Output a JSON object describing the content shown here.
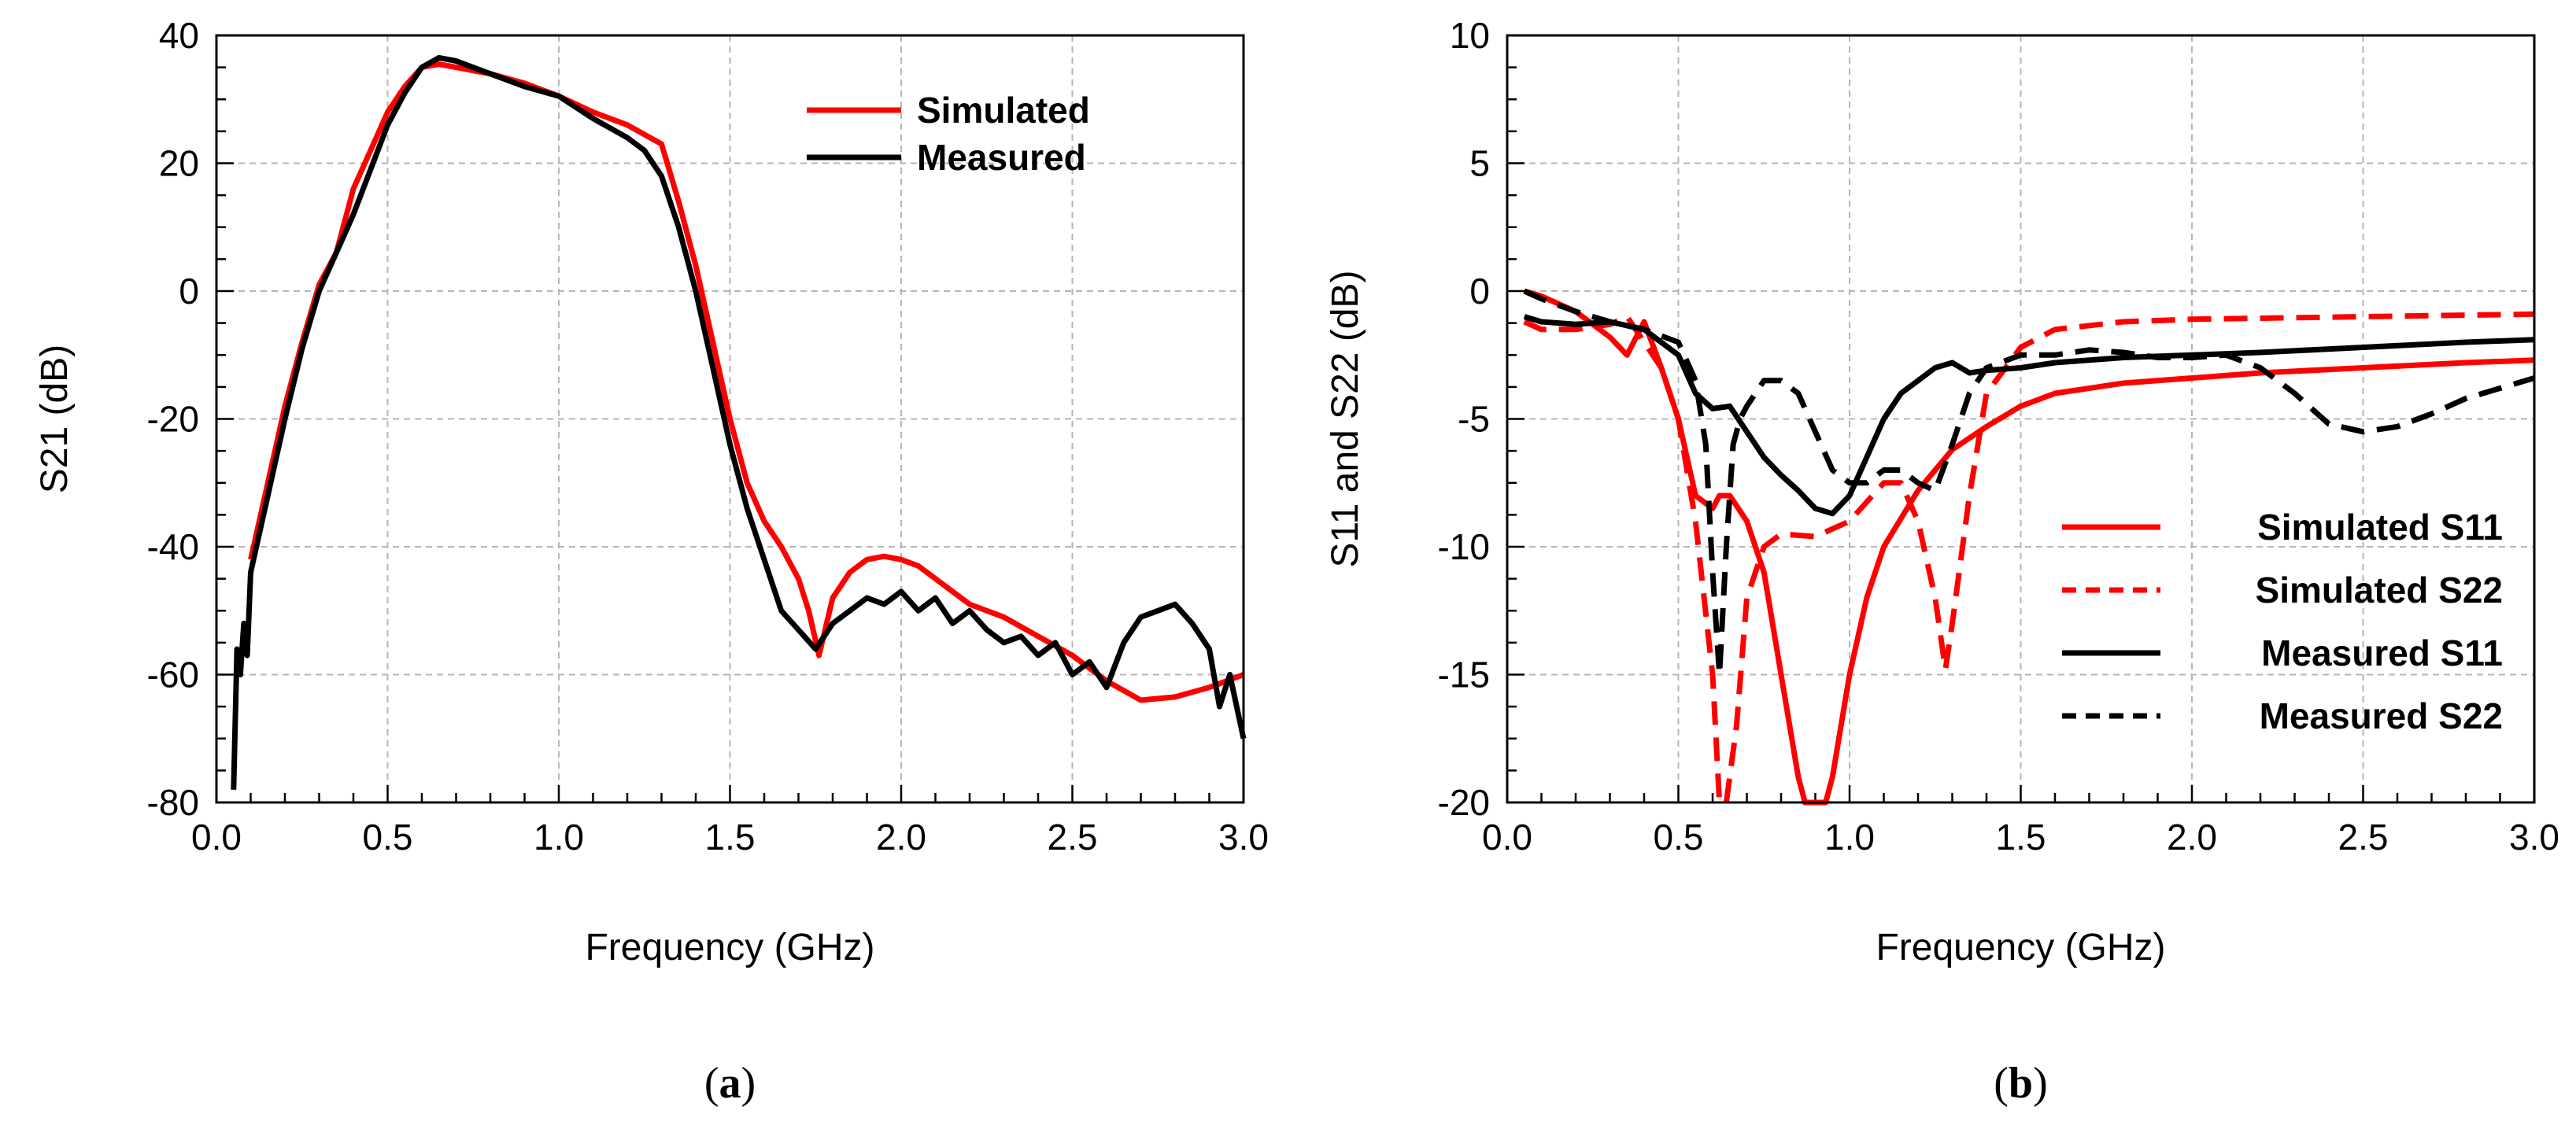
{
  "chart_data": [
    {
      "type": "line",
      "panel_label": "a",
      "xlabel": "Frequency (GHz)",
      "ylabel": "S21 (dB)",
      "xlim": [
        0,
        3
      ],
      "ylim": [
        -80,
        40
      ],
      "x_ticks": [
        0,
        0.5,
        1,
        1.5,
        2,
        2.5,
        3
      ],
      "x_tick_labels": [
        "0.0",
        "0.5",
        "1.0",
        "1.5",
        "2.0",
        "2.5",
        "3.0"
      ],
      "y_ticks": [
        -80,
        -60,
        -40,
        -20,
        0,
        20,
        40
      ],
      "y_tick_labels": [
        "-80",
        "-60",
        "-40",
        "-20",
        "0",
        "20",
        "40"
      ],
      "grid": true,
      "legend_position": "top-right",
      "series": [
        {
          "name": "Simulated",
          "color": "#ff0000",
          "dash": "solid",
          "x": [
            0.1,
            0.15,
            0.2,
            0.25,
            0.3,
            0.35,
            0.4,
            0.45,
            0.5,
            0.55,
            0.6,
            0.65,
            0.7,
            0.8,
            0.9,
            1.0,
            1.1,
            1.2,
            1.3,
            1.35,
            1.4,
            1.45,
            1.5,
            1.55,
            1.6,
            1.65,
            1.7,
            1.73,
            1.76,
            1.8,
            1.85,
            1.9,
            1.95,
            2.0,
            2.05,
            2.1,
            2.15,
            2.2,
            2.3,
            2.4,
            2.5,
            2.6,
            2.7,
            2.8,
            2.9,
            3.0
          ],
          "y": [
            -42,
            -30,
            -18,
            -8,
            1,
            6,
            16,
            22,
            28,
            32,
            35,
            35.5,
            35,
            34,
            32.5,
            30.5,
            28,
            26,
            23,
            14,
            4,
            -8,
            -20,
            -30,
            -36,
            -40,
            -45,
            -50,
            -57,
            -48,
            -44,
            -42,
            -41.5,
            -42,
            -43,
            -45,
            -47,
            -49,
            -51,
            -54,
            -57,
            -61,
            -64,
            -63.5,
            -62,
            -60
          ]
        },
        {
          "name": "Measured",
          "color": "#000000",
          "dash": "solid",
          "x": [
            0.05,
            0.06,
            0.07,
            0.08,
            0.09,
            0.1,
            0.15,
            0.2,
            0.25,
            0.3,
            0.35,
            0.4,
            0.45,
            0.5,
            0.55,
            0.6,
            0.65,
            0.7,
            0.8,
            0.9,
            1.0,
            1.1,
            1.2,
            1.25,
            1.3,
            1.35,
            1.4,
            1.45,
            1.5,
            1.55,
            1.6,
            1.65,
            1.7,
            1.75,
            1.8,
            1.85,
            1.9,
            1.95,
            2.0,
            2.05,
            2.1,
            2.15,
            2.2,
            2.25,
            2.3,
            2.35,
            2.4,
            2.45,
            2.5,
            2.55,
            2.6,
            2.65,
            2.7,
            2.75,
            2.8,
            2.85,
            2.9,
            2.93,
            2.96,
            3.0
          ],
          "y": [
            -78,
            -56,
            -60,
            -52,
            -57,
            -44,
            -32,
            -20,
            -9,
            0,
            6,
            12,
            19,
            26,
            31,
            35,
            36.5,
            36,
            34,
            32,
            30.5,
            27,
            24,
            22,
            18,
            10,
            0,
            -12,
            -24,
            -34,
            -42,
            -50,
            -53,
            -56,
            -52,
            -50,
            -48,
            -49,
            -47,
            -50,
            -48,
            -52,
            -50,
            -53,
            -55,
            -54,
            -57,
            -55,
            -60,
            -58,
            -62,
            -55,
            -51,
            -50,
            -49,
            -52,
            -56,
            -65,
            -60,
            -70
          ]
        }
      ]
    },
    {
      "type": "line",
      "panel_label": "b",
      "xlabel": "Frequency (GHz)",
      "ylabel": "S11 and S22 (dB)",
      "xlim": [
        0,
        3
      ],
      "ylim": [
        -20,
        10
      ],
      "x_ticks": [
        0,
        0.5,
        1,
        1.5,
        2,
        2.5,
        3
      ],
      "x_tick_labels": [
        "0.0",
        "0.5",
        "1.0",
        "1.5",
        "2.0",
        "2.5",
        "3.0"
      ],
      "y_ticks": [
        -20,
        -15,
        -10,
        -5,
        0,
        5,
        10
      ],
      "y_tick_labels": [
        "-20",
        "-15",
        "-10",
        "-5",
        "0",
        "5",
        "10"
      ],
      "grid": true,
      "legend_position": "bottom-right",
      "series": [
        {
          "name": "Simulated S11",
          "color": "#ff0000",
          "dash": "solid",
          "x": [
            0.05,
            0.1,
            0.2,
            0.3,
            0.35,
            0.4,
            0.45,
            0.5,
            0.55,
            0.6,
            0.62,
            0.65,
            0.7,
            0.75,
            0.8,
            0.85,
            0.87,
            0.9,
            0.93,
            0.95,
            1.0,
            1.05,
            1.1,
            1.2,
            1.3,
            1.4,
            1.5,
            1.6,
            1.8,
            2.0,
            2.2,
            2.5,
            2.8,
            3.0
          ],
          "y": [
            0,
            -0.2,
            -0.8,
            -1.8,
            -2.5,
            -1.2,
            -3,
            -5,
            -8,
            -8.5,
            -8,
            -8,
            -9,
            -11,
            -15,
            -19,
            -20.5,
            -21,
            -20.5,
            -19,
            -15,
            -12,
            -10,
            -7.8,
            -6.2,
            -5.3,
            -4.5,
            -4,
            -3.6,
            -3.4,
            -3.2,
            -3,
            -2.8,
            -2.7
          ]
        },
        {
          "name": "Simulated S22",
          "color": "#ff0000",
          "dash": "dashed",
          "x": [
            0.05,
            0.1,
            0.2,
            0.3,
            0.35,
            0.4,
            0.45,
            0.5,
            0.55,
            0.6,
            0.62,
            0.64,
            0.67,
            0.7,
            0.75,
            0.8,
            0.9,
            1.0,
            1.1,
            1.15,
            1.2,
            1.25,
            1.28,
            1.3,
            1.35,
            1.4,
            1.5,
            1.6,
            1.8,
            2.0,
            2.5,
            3.0
          ],
          "y": [
            -1.2,
            -1.5,
            -1.5,
            -1.3,
            -1,
            -2,
            -3,
            -5,
            -9,
            -15,
            -20.5,
            -21,
            -17,
            -12,
            -10,
            -9.5,
            -9.6,
            -9,
            -7.5,
            -7.5,
            -9,
            -12,
            -14.8,
            -13,
            -8,
            -4,
            -2.2,
            -1.5,
            -1.2,
            -1.1,
            -1,
            -0.9
          ]
        },
        {
          "name": "Measured S11",
          "color": "#000000",
          "dash": "solid",
          "x": [
            0.05,
            0.1,
            0.2,
            0.3,
            0.4,
            0.5,
            0.55,
            0.6,
            0.65,
            0.7,
            0.75,
            0.8,
            0.85,
            0.9,
            0.95,
            1.0,
            1.05,
            1.1,
            1.15,
            1.2,
            1.25,
            1.3,
            1.35,
            1.4,
            1.5,
            1.6,
            1.8,
            2.0,
            2.2,
            2.5,
            2.8,
            3.0
          ],
          "y": [
            -1,
            -1.2,
            -1.3,
            -1.2,
            -1.5,
            -2.5,
            -4,
            -4.6,
            -4.5,
            -5.5,
            -6.5,
            -7.2,
            -7.8,
            -8.5,
            -8.7,
            -8,
            -6.5,
            -5,
            -4,
            -3.5,
            -3,
            -2.8,
            -3.2,
            -3.1,
            -3,
            -2.8,
            -2.6,
            -2.5,
            -2.4,
            -2.2,
            -2.0,
            -1.9
          ]
        },
        {
          "name": "Measured S22",
          "color": "#000000",
          "dash": "dashed",
          "x": [
            0.05,
            0.1,
            0.2,
            0.3,
            0.4,
            0.5,
            0.55,
            0.58,
            0.6,
            0.62,
            0.64,
            0.66,
            0.68,
            0.7,
            0.75,
            0.8,
            0.85,
            0.9,
            0.95,
            1.0,
            1.05,
            1.1,
            1.15,
            1.2,
            1.25,
            1.3,
            1.35,
            1.4,
            1.5,
            1.6,
            1.7,
            1.8,
            1.9,
            2.0,
            2.1,
            2.2,
            2.3,
            2.4,
            2.5,
            2.6,
            2.7,
            2.8,
            2.9,
            3.0
          ],
          "y": [
            0,
            -0.3,
            -0.8,
            -1.2,
            -1.5,
            -2,
            -3.5,
            -6,
            -11,
            -15,
            -10,
            -6,
            -5,
            -4.5,
            -3.5,
            -3.5,
            -4,
            -5.5,
            -7,
            -7.5,
            -7.5,
            -7,
            -7,
            -7.5,
            -7.8,
            -6,
            -4,
            -3,
            -2.5,
            -2.5,
            -2.3,
            -2.4,
            -2.6,
            -2.6,
            -2.5,
            -3,
            -4,
            -5.2,
            -5.5,
            -5.3,
            -4.8,
            -4.2,
            -3.8,
            -3.4
          ]
        }
      ]
    }
  ]
}
